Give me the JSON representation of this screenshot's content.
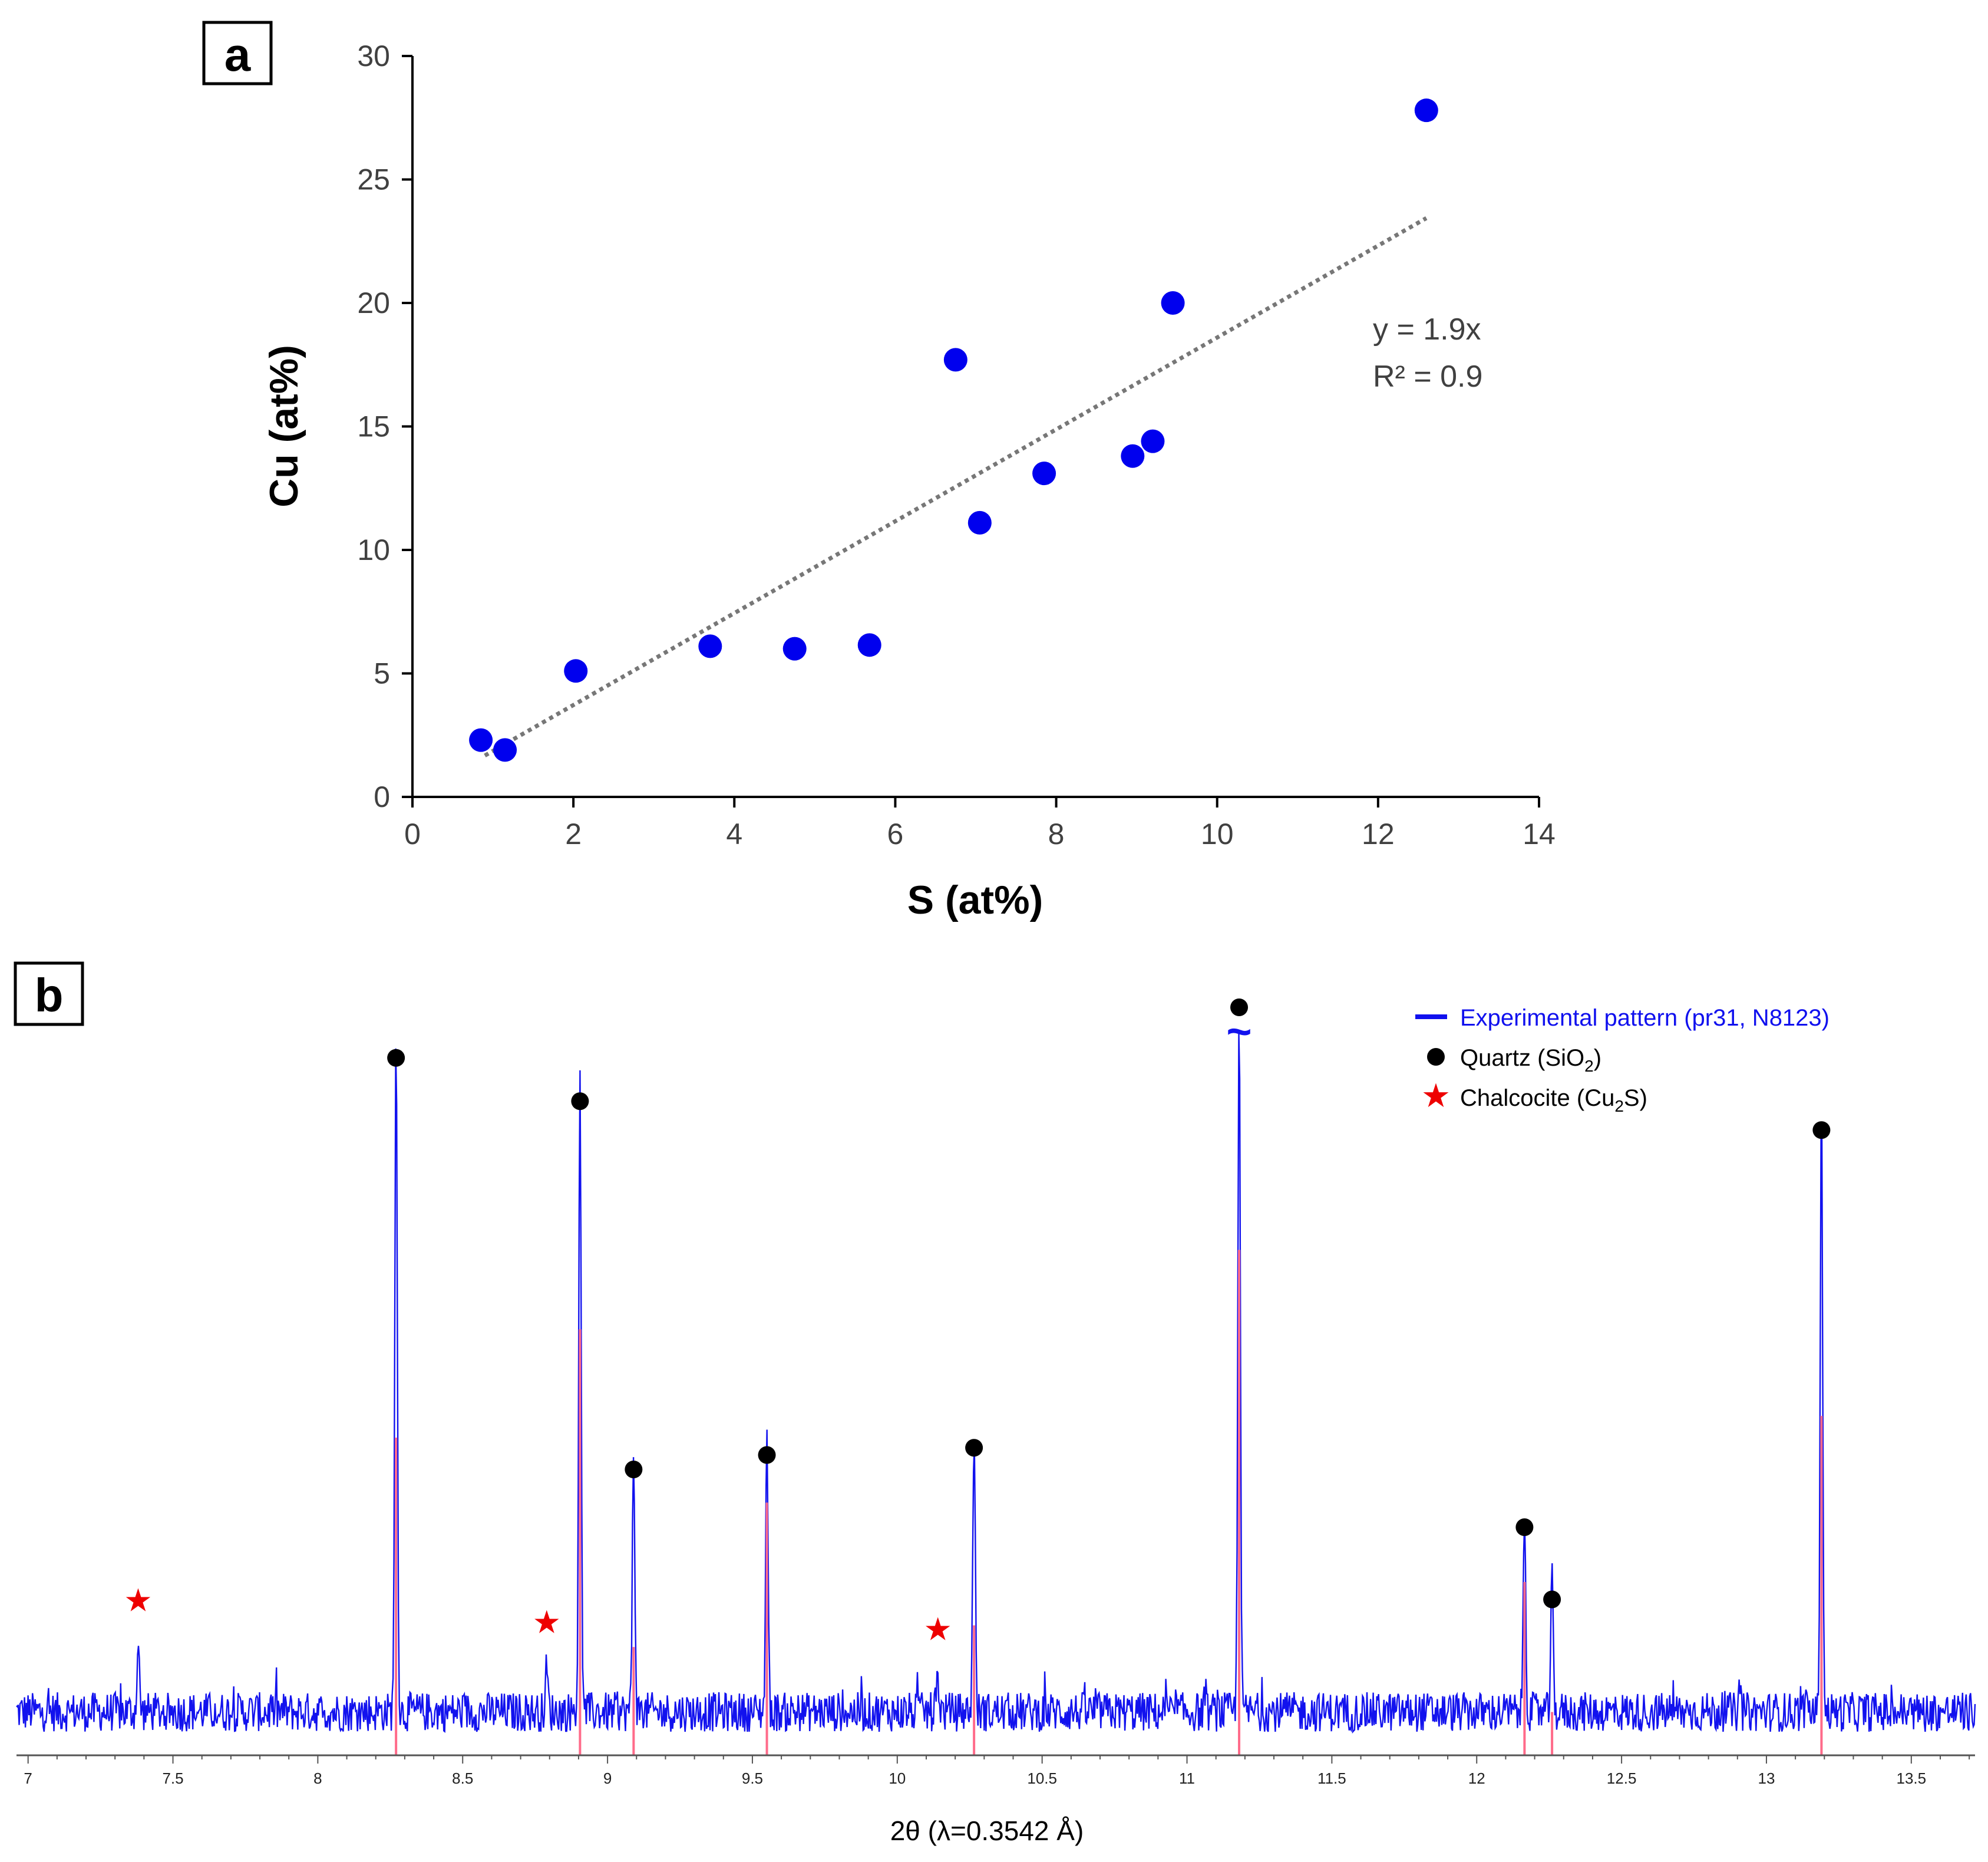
{
  "chart_data": [
    {
      "panel": "a",
      "type": "scatter",
      "xlabel": "S (at%)",
      "ylabel": "Cu (at%)",
      "xlim": [
        0,
        14
      ],
      "ylim": [
        0,
        30
      ],
      "x_ticks": [
        "0",
        "2",
        "4",
        "6",
        "8",
        "10",
        "12",
        "14"
      ],
      "y_ticks": [
        "0",
        "5",
        "10",
        "15",
        "20",
        "25",
        "30"
      ],
      "grid": false,
      "points": [
        {
          "x": 0.85,
          "y": 2.3
        },
        {
          "x": 1.15,
          "y": 1.9
        },
        {
          "x": 2.03,
          "y": 5.1
        },
        {
          "x": 3.7,
          "y": 6.1
        },
        {
          "x": 4.75,
          "y": 6.0
        },
        {
          "x": 5.68,
          "y": 6.15
        },
        {
          "x": 6.75,
          "y": 17.7
        },
        {
          "x": 7.05,
          "y": 11.1
        },
        {
          "x": 7.85,
          "y": 13.1
        },
        {
          "x": 8.95,
          "y": 13.8
        },
        {
          "x": 9.2,
          "y": 14.4
        },
        {
          "x": 9.45,
          "y": 20.0
        },
        {
          "x": 12.6,
          "y": 27.8
        }
      ],
      "trendline": {
        "slope": 1.86,
        "x_range": [
          0.9,
          12.6
        ],
        "equation": "y = 1.9x",
        "r2": "R² = 0.9"
      },
      "colors": {
        "points": "#0000ee",
        "trend": "#777777",
        "axis": "#000000"
      }
    },
    {
      "panel": "b",
      "type": "line",
      "xlabel": "2θ (λ=0.3542 Å)",
      "xlim": [
        6.96,
        13.72
      ],
      "x_ticks": [
        "7",
        "7.5",
        "8",
        "8.5",
        "9",
        "9.5",
        "10",
        "10.5",
        "11",
        "11.5",
        "12",
        "12.5",
        "13",
        "13.5"
      ],
      "legend_position": "top-right",
      "legend": [
        {
          "label": "Experimental pattern (pr31, N8123)",
          "marker": "line",
          "color": "#1010ee"
        },
        {
          "label": "Quartz (SiO",
          "sub": "2",
          "end": ")",
          "marker": "dot",
          "color": "#000000"
        },
        {
          "label": "Chalcocite (Cu",
          "sub": "2",
          "end": "S)",
          "marker": "star",
          "color": "#ee0000"
        }
      ],
      "baseline_level": 0.06,
      "noise_amplitude": 0.055,
      "peaks": [
        {
          "x": 7.38,
          "h": 0.09,
          "phase": "chalcocite"
        },
        {
          "x": 8.27,
          "h": 0.93,
          "phase": "quartz"
        },
        {
          "x": 8.79,
          "h": 0.06,
          "phase": "chalcocite"
        },
        {
          "x": 8.905,
          "h": 0.87,
          "phase": "quartz"
        },
        {
          "x": 9.09,
          "h": 0.36,
          "phase": "quartz"
        },
        {
          "x": 9.55,
          "h": 0.38,
          "phase": "quartz"
        },
        {
          "x": 10.14,
          "h": 0.05,
          "phase": "chalcocite"
        },
        {
          "x": 10.265,
          "h": 0.39,
          "phase": "quartz"
        },
        {
          "x": 11.18,
          "h": 1.0,
          "phase": "quartz",
          "break": true
        },
        {
          "x": 12.165,
          "h": 0.28,
          "phase": "quartz"
        },
        {
          "x": 12.26,
          "h": 0.18,
          "phase": "quartz"
        },
        {
          "x": 13.19,
          "h": 0.83,
          "phase": "quartz"
        }
      ],
      "reference_sticks": [
        {
          "x": 8.27,
          "h": 0.44
        },
        {
          "x": 8.905,
          "h": 0.59
        },
        {
          "x": 9.09,
          "h": 0.15
        },
        {
          "x": 9.55,
          "h": 0.35
        },
        {
          "x": 10.265,
          "h": 0.18
        },
        {
          "x": 11.18,
          "h": 0.7
        },
        {
          "x": 12.165,
          "h": 0.24
        },
        {
          "x": 12.26,
          "h": 0.06
        },
        {
          "x": 13.19,
          "h": 0.47
        }
      ],
      "colors": {
        "pattern": "#1212ee",
        "reference": "#ff6b8a",
        "quartz": "#000000",
        "chalcocite": "#ee0000"
      }
    }
  ]
}
